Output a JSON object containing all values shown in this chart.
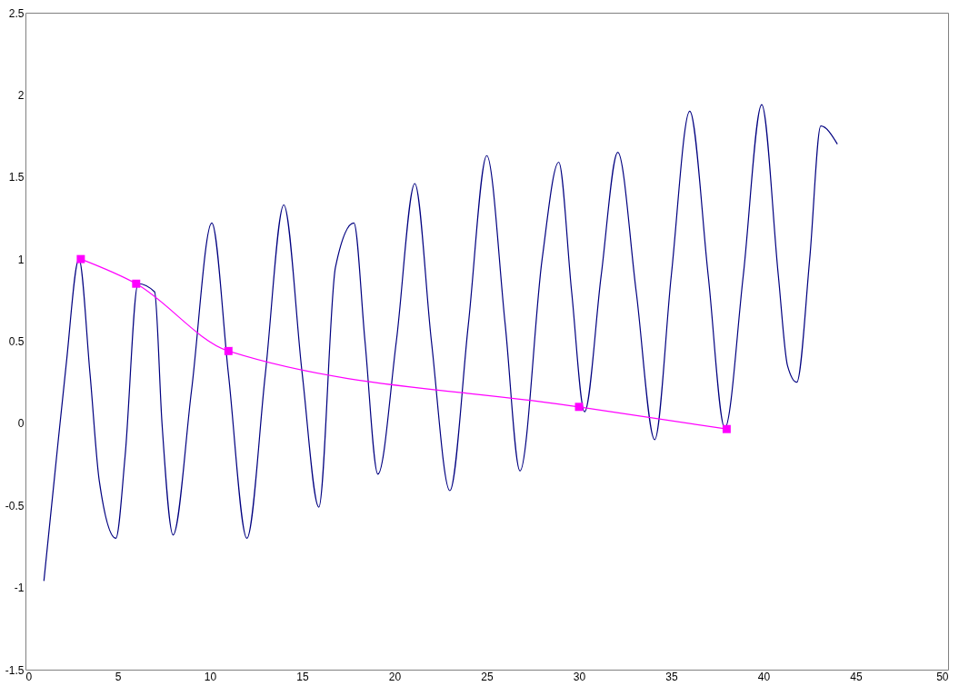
{
  "chart_data": {
    "type": "line",
    "xlim": [
      0,
      50
    ],
    "ylim": [
      -1.5,
      2.5
    ],
    "xticks": [
      0,
      5,
      10,
      15,
      20,
      25,
      30,
      35,
      40,
      45,
      50
    ],
    "yticks": [
      -1.5,
      -1,
      -0.5,
      0,
      0.5,
      1,
      1.5,
      2,
      2.5
    ],
    "series": [
      {
        "color": "#000080",
        "marker": "none",
        "line_style": "solid",
        "x": [
          1.0,
          1.6,
          2.2,
          2.9,
          3.5,
          4.0,
          4.9,
          5.4,
          6.1,
          7.0,
          7.4,
          8.0,
          9.0,
          10.1,
          11.0,
          12.0,
          13.0,
          14.0,
          15.0,
          15.9,
          16.8,
          17.8,
          18.4,
          19.1,
          20.1,
          21.1,
          22.0,
          23.0,
          24.0,
          25.0,
          26.0,
          26.8,
          28.0,
          28.9,
          29.6,
          30.3,
          31.2,
          32.1,
          33.1,
          34.1,
          35.0,
          36.0,
          37.0,
          37.9,
          38.9,
          39.9,
          40.8,
          41.3,
          41.8,
          42.5,
          43.1,
          44.0
        ],
        "values": [
          -0.96,
          -0.3,
          0.35,
          1.0,
          0.3,
          -0.35,
          -0.7,
          -0.2,
          0.85,
          0.8,
          0.0,
          -0.68,
          0.2,
          1.22,
          0.3,
          -0.7,
          0.3,
          1.33,
          0.3,
          -0.51,
          0.95,
          1.22,
          0.5,
          -0.31,
          0.5,
          1.46,
          0.5,
          -0.41,
          0.6,
          1.63,
          0.6,
          -0.29,
          1.0,
          1.59,
          0.8,
          0.07,
          0.9,
          1.65,
          0.8,
          -0.1,
          0.9,
          1.9,
          0.9,
          -0.03,
          0.9,
          1.94,
          0.9,
          0.35,
          0.25,
          1.0,
          1.81,
          1.7
        ]
      },
      {
        "color": "#ff00ff",
        "marker": "square",
        "line_style": "solid",
        "x": [
          3,
          6,
          11,
          30,
          38
        ],
        "values": [
          1.0,
          0.85,
          0.44,
          0.1,
          -0.035
        ]
      }
    ]
  }
}
